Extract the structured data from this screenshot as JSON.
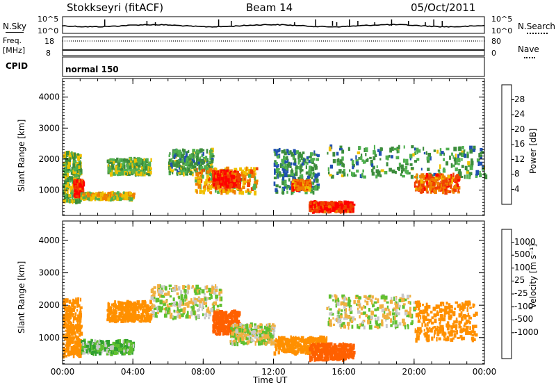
{
  "header": {
    "station": "Stokkseyri (fitACF)",
    "beam": "Beam 14",
    "date": "05/Oct/2011"
  },
  "nsky_panel": {
    "left_label": "N.Sky",
    "left_ticks": [
      "10^5",
      "10^0"
    ],
    "right_ticks": [
      "10^5",
      "10^0"
    ],
    "right_label": "N.Search"
  },
  "freq_panel": {
    "left_label_1": "Freq.",
    "left_label_2": "[MHz]",
    "left_ticks": [
      "18",
      "8"
    ],
    "right_ticks": [
      "80",
      "0"
    ],
    "right_label": "Nave"
  },
  "cpid_panel": {
    "label": "CPID",
    "mode": "normal 150"
  },
  "colors": {
    "power_scale": [
      "#0000ff",
      "#2050b0",
      "#3c8c3c",
      "#50b050",
      "#f0c000",
      "#f08000",
      "#f04000",
      "#ff0000"
    ],
    "velocity_scale": [
      "#ff0000",
      "#ff6000",
      "#ff9000",
      "#f0b040",
      "#c8c8c8",
      "#c8c8c8",
      "#60c030",
      "#30a030",
      "#3070c0",
      "#2030c0"
    ],
    "ground_scatter": "#c8c8c8"
  },
  "chart_data": [
    {
      "type": "heatmap",
      "title": "",
      "xlabel": "",
      "ylabel": "Slant Range [km]",
      "x_ticks": [
        "00:00",
        "04:00",
        "08:00",
        "12:00",
        "16:00",
        "20:00",
        "00:00"
      ],
      "xlim_hours": [
        0,
        24
      ],
      "y_ticks": [
        "1000",
        "2000",
        "3000",
        "4000"
      ],
      "ylim_km": [
        180,
        4600
      ],
      "colorbar_label": "Power [dB]",
      "colorbar_ticks": [
        "4",
        "8",
        "12",
        "16",
        "20",
        "24",
        "28"
      ],
      "colorbar_range": [
        0,
        32
      ],
      "echo_regions": [
        {
          "t": [
            0.0,
            1.0
          ],
          "r": [
            600,
            2200
          ],
          "dB": 14
        },
        {
          "t": [
            0.6,
            1.1
          ],
          "r": [
            800,
            1300
          ],
          "dB": 28
        },
        {
          "t": [
            1.0,
            4.0
          ],
          "r": [
            700,
            900
          ],
          "dB": 18
        },
        {
          "t": [
            2.5,
            5.0
          ],
          "r": [
            1500,
            2000
          ],
          "dB": 14
        },
        {
          "t": [
            6.0,
            8.5
          ],
          "r": [
            1500,
            2300
          ],
          "dB": 12
        },
        {
          "t": [
            7.5,
            11.0
          ],
          "r": [
            900,
            1700
          ],
          "dB": 20
        },
        {
          "t": [
            8.5,
            10.0
          ],
          "r": [
            1100,
            1600
          ],
          "dB": 28
        },
        {
          "t": [
            12.0,
            14.5
          ],
          "r": [
            900,
            2300
          ],
          "dB": 10
        },
        {
          "t": [
            13.0,
            14.0
          ],
          "r": [
            1000,
            1300
          ],
          "dB": 24
        },
        {
          "t": [
            14.0,
            16.5
          ],
          "r": [
            300,
            600
          ],
          "dB": 28
        },
        {
          "t": [
            15.0,
            24.0
          ],
          "r": [
            1400,
            2400
          ],
          "dB": 12
        },
        {
          "t": [
            20.0,
            22.5
          ],
          "r": [
            900,
            1500
          ],
          "dB": 24
        }
      ]
    },
    {
      "type": "heatmap",
      "title": "",
      "xlabel": "Time UT",
      "ylabel": "Slant Range [km]",
      "x_ticks": [
        "00:00",
        "04:00",
        "08:00",
        "12:00",
        "16:00",
        "20:00",
        "00:00"
      ],
      "xlim_hours": [
        0,
        24
      ],
      "y_ticks": [
        "1000",
        "2000",
        "3000",
        "4000"
      ],
      "ylim_km": [
        180,
        4600
      ],
      "colorbar_label": "Velocity [m s⁻¹]",
      "colorbar_ticks": [
        "1000",
        "500",
        "100",
        "25",
        "-25",
        "-100",
        "-500",
        "-1000"
      ],
      "colorbar_range": [
        -1250,
        1250
      ],
      "echo_regions": [
        {
          "t": [
            0.0,
            1.0
          ],
          "r": [
            400,
            2200
          ],
          "v": -200
        },
        {
          "t": [
            1.0,
            4.0
          ],
          "r": [
            500,
            900
          ],
          "v": 80
        },
        {
          "t": [
            2.5,
            5.0
          ],
          "r": [
            1500,
            2100
          ],
          "v": -300
        },
        {
          "t": [
            5.0,
            9.0
          ],
          "r": [
            1600,
            2600
          ],
          "v": 0
        },
        {
          "t": [
            8.5,
            10.0
          ],
          "r": [
            1100,
            1800
          ],
          "v": -800
        },
        {
          "t": [
            9.5,
            12.0
          ],
          "r": [
            800,
            1400
          ],
          "v": 0
        },
        {
          "t": [
            12.0,
            15.0
          ],
          "r": [
            500,
            1000
          ],
          "v": -300
        },
        {
          "t": [
            14.0,
            16.5
          ],
          "r": [
            300,
            800
          ],
          "v": -600
        },
        {
          "t": [
            15.0,
            20.0
          ],
          "r": [
            1300,
            2300
          ],
          "v": 0
        },
        {
          "t": [
            20.0,
            23.5
          ],
          "r": [
            900,
            2100
          ],
          "v": -300
        }
      ]
    }
  ]
}
